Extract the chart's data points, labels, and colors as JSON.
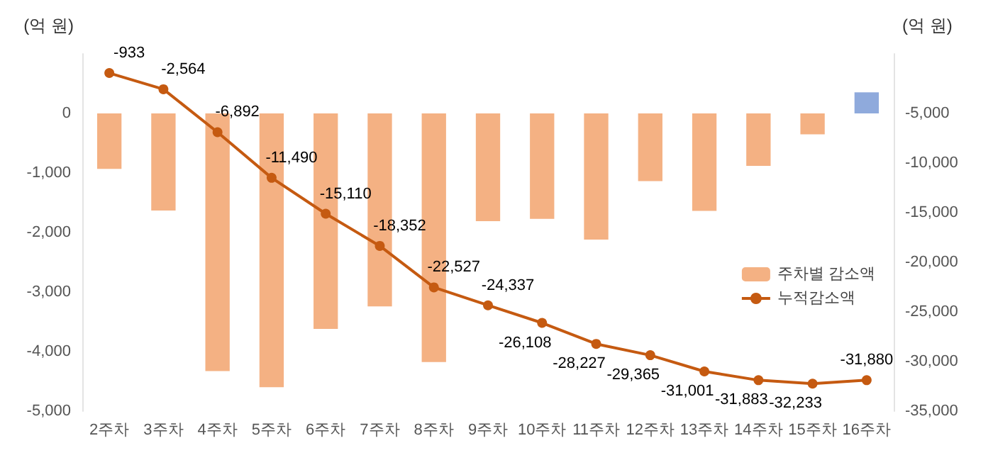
{
  "chart_data": {
    "type": "bar",
    "categories": [
      "2주차",
      "3주차",
      "4주차",
      "5주차",
      "6주차",
      "7주차",
      "8주차",
      "9주차",
      "10주차",
      "11주차",
      "12주차",
      "13주차",
      "14주차",
      "15주차",
      "16주차"
    ],
    "ylabel": "(억 원)",
    "y2label": "(억 원)",
    "ylim": [
      -5000,
      1000
    ],
    "yticks": [
      0,
      {
        "value": -1000,
        "label": "-1,000"
      },
      {
        "value": -2000,
        "label": "-2,000"
      },
      {
        "value": -3000,
        "label": "-3,000"
      },
      {
        "value": -4000,
        "label": "-4,000"
      },
      {
        "value": -5000,
        "label": "-5,000"
      }
    ],
    "y2lim": [
      -35000,
      1000
    ],
    "y2ticks": [
      {
        "value": -5000,
        "label": "-5,000"
      },
      {
        "value": -10000,
        "label": "-10,000"
      },
      {
        "value": -15000,
        "label": "-15,000"
      },
      {
        "value": -20000,
        "label": "-20,000"
      },
      {
        "value": -25000,
        "label": "-25,000"
      },
      {
        "value": -30000,
        "label": "-30,000"
      },
      {
        "value": -35000,
        "label": "-35,000"
      }
    ],
    "grid": false,
    "legend": "right",
    "marker": "circle",
    "series": [
      {
        "name": "주차별 감소액",
        "color": "#f4b183",
        "colors": [
          "#f4b183",
          "#f4b183",
          "#f4b183",
          "#f4b183",
          "#f4b183",
          "#f4b183",
          "#f4b183",
          "#f4b183",
          "#f4b183",
          "#f4b183",
          "#f4b183",
          "#f4b183",
          "#f4b183",
          "#f4b183",
          "#8faadc"
        ],
        "values": [
          -933,
          -1631,
          -4328,
          -4598,
          -3620,
          -3242,
          -4175,
          -1810,
          -1771,
          -2119,
          -1138,
          -1636,
          -882,
          -350,
          353
        ]
      },
      {
        "name": "누적감소액",
        "type": "line",
        "axis": "y2",
        "color": "#c55a11",
        "value_labels": [
          "-933",
          "-2,564",
          "-6,892",
          "-11,490",
          "-15,110",
          "-18,352",
          "-22,527",
          "-24,337",
          "-26,108",
          "-28,227",
          "-29,365",
          "-31,001",
          "-31,883",
          "-32,233",
          "-31,880"
        ],
        "values": [
          -933,
          -2564,
          -6892,
          -11490,
          -15110,
          -18352,
          -22527,
          -24337,
          -26108,
          -28227,
          -29365,
          -31001,
          -31883,
          -32233,
          -31880
        ]
      }
    ]
  }
}
